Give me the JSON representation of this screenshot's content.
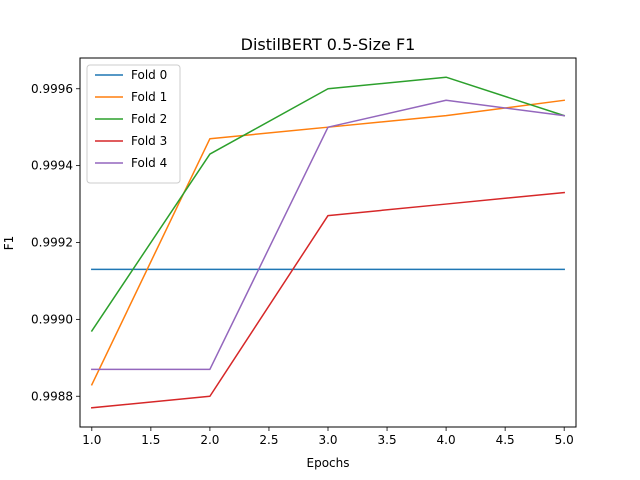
{
  "chart_data": {
    "type": "line",
    "title": "DistilBERT 0.5-Size F1",
    "xlabel": "Epochs",
    "ylabel": "F1",
    "xlim": [
      0.9,
      5.1
    ],
    "ylim": [
      0.99872,
      0.99968
    ],
    "xticks": [
      1.0,
      1.5,
      2.0,
      2.5,
      3.0,
      3.5,
      4.0,
      4.5,
      5.0
    ],
    "xtick_labels": [
      "1.0",
      "1.5",
      "2.0",
      "2.5",
      "3.0",
      "3.5",
      "4.0",
      "4.5",
      "5.0"
    ],
    "yticks": [
      0.9988,
      0.999,
      0.9992,
      0.9994,
      0.9996
    ],
    "ytick_labels": [
      "0.9988",
      "0.9990",
      "0.9992",
      "0.9994",
      "0.9996"
    ],
    "grid": false,
    "legend_position": "top-left",
    "x": [
      1,
      2,
      3,
      4,
      5
    ],
    "series": [
      {
        "name": "Fold 0",
        "color": "#1f77b4",
        "values": [
          0.99913,
          0.99913,
          0.99913,
          0.99913,
          0.99913
        ]
      },
      {
        "name": "Fold 1",
        "color": "#ff7f0e",
        "values": [
          0.99883,
          0.99947,
          0.9995,
          0.99953,
          0.99957
        ]
      },
      {
        "name": "Fold 2",
        "color": "#2ca02c",
        "values": [
          0.99897,
          0.99943,
          0.9996,
          0.99963,
          0.99953
        ]
      },
      {
        "name": "Fold 3",
        "color": "#d62728",
        "values": [
          0.99877,
          0.9988,
          0.99927,
          0.9993,
          0.99933
        ]
      },
      {
        "name": "Fold 4",
        "color": "#9467bd",
        "values": [
          0.99887,
          0.99887,
          0.9995,
          0.99957,
          0.99953
        ]
      }
    ]
  }
}
